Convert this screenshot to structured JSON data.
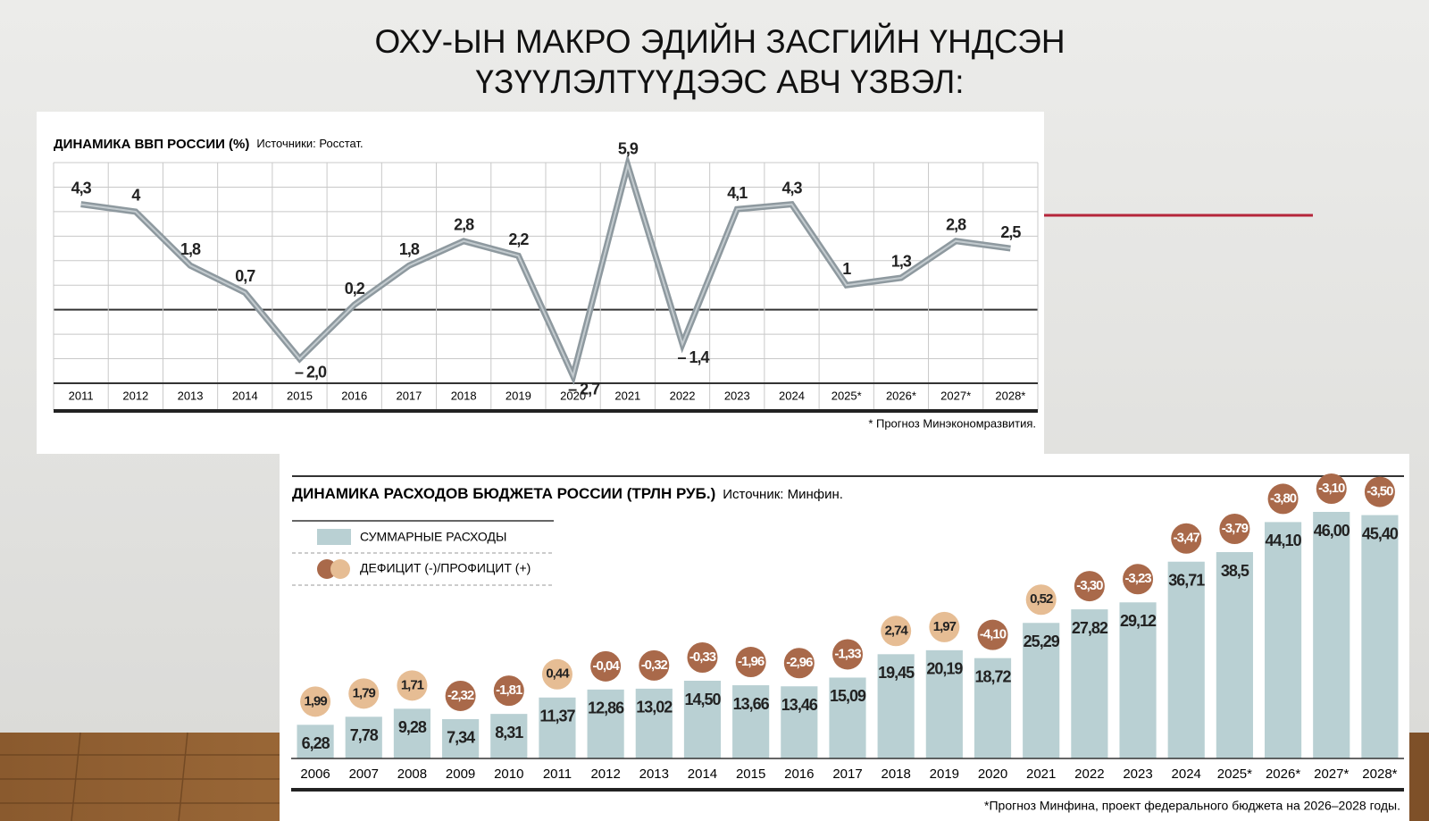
{
  "slide_title": [
    "ОХУ-ЫН МАКРО ЭДИЙН ЗАСГИЙН ҮНДСЭН",
    "ҮЗҮҮЛЭЛТҮҮДЭЭС АВЧ ҮЗВЭЛ:"
  ],
  "chart_data": [
    {
      "type": "line",
      "title": "ДИНАМИКА ВВП РОССИИ (%)",
      "source": "Источники: Росстат.",
      "footnote": "* Прогноз Минэкономразвития.",
      "categories": [
        "2011",
        "2012",
        "2013",
        "2014",
        "2015",
        "2016",
        "2017",
        "2018",
        "2019",
        "2020",
        "2021",
        "2022",
        "2023",
        "2024",
        "2025*",
        "2026*",
        "2027*",
        "2028*"
      ],
      "values": [
        4.3,
        4,
        1.8,
        0.7,
        -2.0,
        0.2,
        1.8,
        2.8,
        2.2,
        -2.7,
        5.9,
        -1.4,
        4.1,
        4.3,
        1,
        1.3,
        2.8,
        2.5
      ],
      "value_labels": [
        "4,3",
        "4",
        "1,8",
        "0,7",
        "– 2,0",
        "0,2",
        "1,8",
        "2,8",
        "2,2",
        "– 2,7",
        "5,9",
        "– 1,4",
        "4,1",
        "4,3",
        "1",
        "1,3",
        "2,8",
        "2,5"
      ],
      "color": "#8e999f",
      "ylim": [
        -3,
        6
      ],
      "yticks": [
        -3,
        -2,
        -1,
        0,
        1,
        2,
        3,
        4,
        5,
        6
      ],
      "grid": true
    },
    {
      "type": "bar",
      "title": "ДИНАМИКА РАСХОДОВ БЮДЖЕТА РОССИИ (ТРЛН РУБ.)",
      "source": "Источник: Минфин.",
      "footnote": "*Прогноз Минфина, проект федерального бюджета на 2026–2028 годы.",
      "categories": [
        "2006",
        "2007",
        "2008",
        "2009",
        "2010",
        "2011",
        "2012",
        "2013",
        "2014",
        "2015",
        "2016",
        "2017",
        "2018",
        "2019",
        "2020",
        "2021",
        "2022",
        "2023",
        "2024",
        "2025*",
        "2026*",
        "2027*",
        "2028*"
      ],
      "ylim": [
        0,
        50
      ],
      "series": [
        {
          "name": "СУММАРНЫЕ РАСХОДЫ",
          "color": "#b9d0d3",
          "values": [
            6.28,
            7.78,
            9.28,
            7.34,
            8.31,
            11.37,
            12.86,
            13.02,
            14.5,
            13.66,
            13.46,
            15.09,
            19.45,
            20.19,
            18.72,
            25.29,
            27.82,
            29.12,
            36.71,
            38.5,
            44.1,
            46.0,
            45.4
          ],
          "value_labels": [
            "6,28",
            "7,78",
            "9,28",
            "7,34",
            "8,31",
            "11,37",
            "12,86",
            "13,02",
            "14,50",
            "13,66",
            "13,46",
            "15,09",
            "19,45",
            "20,19",
            "18,72",
            "25,29",
            "27,82",
            "29,12",
            "36,71",
            "38,5",
            "44,10",
            "46,00",
            "45,40"
          ]
        },
        {
          "name": "ДЕФИЦИТ (-)/ПРОФИЦИТ (+)",
          "color": "#e6bd94",
          "negative_color": "#a9694a",
          "values": [
            1.99,
            1.79,
            1.71,
            -2.32,
            -1.81,
            0.44,
            -0.04,
            -0.32,
            -0.33,
            -1.96,
            -2.96,
            -1.33,
            2.74,
            1.97,
            -4.1,
            0.52,
            -3.3,
            -3.23,
            -3.47,
            -3.79,
            -3.8,
            -3.1,
            -3.5
          ],
          "value_labels": [
            "1,99",
            "1,79",
            "1,71",
            "-2,32",
            "-1,81",
            "0,44",
            "-0,04",
            "-0,32",
            "-0,33",
            "-1,96",
            "-2,96",
            "-1,33",
            "2,74",
            "1,97",
            "-4,10",
            "0,52",
            "-3,30",
            "-3,23",
            "-3,47",
            "-3,79",
            "-3,80",
            "-3,10",
            "-3,50"
          ]
        }
      ]
    }
  ]
}
